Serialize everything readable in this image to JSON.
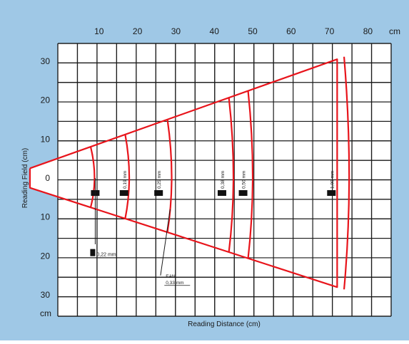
{
  "chart_data": {
    "type": "diagram",
    "x_unit": "cm",
    "y_unit": "cm",
    "xlabel": "Reading Distance (cm)",
    "ylabel": "Reading Field (cm)",
    "x_ticks": [
      10,
      20,
      30,
      40,
      50,
      60,
      70,
      80
    ],
    "y_ticks_top": [
      30,
      20,
      10,
      0
    ],
    "y_ticks_bottom": [
      10,
      20,
      30
    ],
    "xlim": [
      -10,
      85
    ],
    "ylim": [
      -33,
      35
    ],
    "field_outline": [
      [
        -8,
        2.5
      ],
      [
        -8,
        -2.5
      ],
      [
        72,
        -28
      ],
      [
        72,
        30.5
      ],
      [
        -8,
        2.5
      ]
    ],
    "bands": [
      {
        "label": "0,22 mm",
        "distance": 9,
        "marker_x": 9,
        "label_pos": [
          9,
          -19.5
        ],
        "connector": [
          [
            9,
            0
          ],
          [
            9,
            -17
          ]
        ]
      },
      {
        "label": "0,19 mm",
        "distance": 18,
        "marker_x": 16.5,
        "vertical": true
      },
      {
        "label": "0,25 mm",
        "distance": 29,
        "marker_x": 25.5,
        "vertical": true
      },
      {
        "label": "EAN 0,33 mm",
        "label_lines": [
          "EAN",
          "0,33 mm"
        ],
        "distance": 29,
        "label_pos": [
          27,
          -25
        ],
        "connector": [
          [
            28.5,
            -8
          ],
          [
            26,
            -25
          ]
        ]
      },
      {
        "label": "0,38 mm",
        "distance": 45,
        "marker_x": 42,
        "vertical": true
      },
      {
        "label": "0,50 mm",
        "distance": 50,
        "marker_x": 47.5,
        "vertical": true
      },
      {
        "label": "1,00 mm",
        "distance": 75,
        "marker_x": 70.5,
        "vertical": true
      }
    ],
    "corner_label_top": "cm",
    "corner_label_bottom": "cm",
    "colors": {
      "background": "#9fc8e6",
      "plot": "#ffffff",
      "grid": "#1a1a1a",
      "field": "#e8141b"
    }
  }
}
